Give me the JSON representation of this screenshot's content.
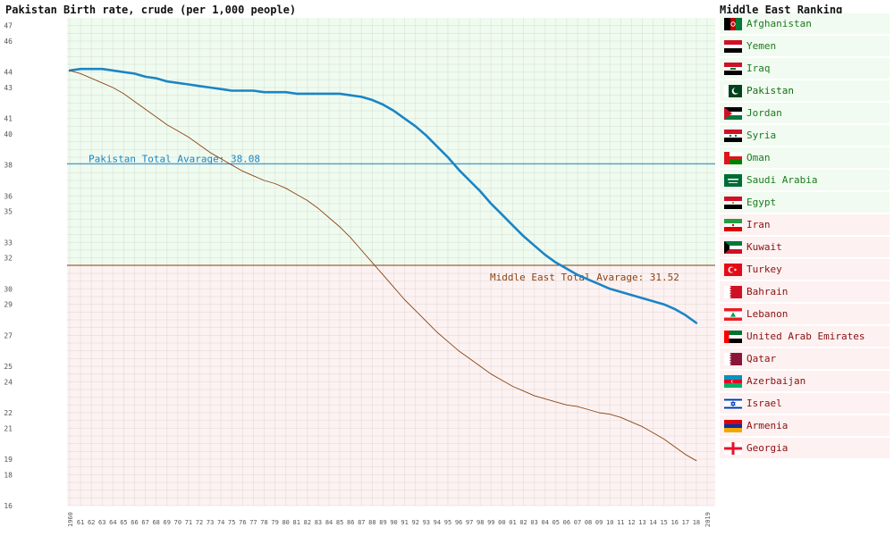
{
  "chart_data": {
    "type": "line",
    "title": "Pakistan Birth rate, crude (per 1,000 people)",
    "x": [
      1960,
      1961,
      1962,
      1963,
      1964,
      1965,
      1966,
      1967,
      1968,
      1969,
      1970,
      1971,
      1972,
      1973,
      1974,
      1975,
      1976,
      1977,
      1978,
      1979,
      1980,
      1981,
      1982,
      1983,
      1984,
      1985,
      1986,
      1987,
      1988,
      1989,
      1990,
      1991,
      1992,
      1993,
      1994,
      1995,
      1996,
      1997,
      1998,
      1999,
      2000,
      2001,
      2002,
      2003,
      2004,
      2005,
      2006,
      2007,
      2008,
      2009,
      2010,
      2011,
      2012,
      2013,
      2014,
      2015,
      2016,
      2017,
      2018,
      2019
    ],
    "x_tick_labels": [
      "1960",
      "61",
      "62",
      "63",
      "64",
      "65",
      "66",
      "67",
      "68",
      "69",
      "70",
      "71",
      "72",
      "73",
      "74",
      "75",
      "76",
      "77",
      "78",
      "79",
      "80",
      "81",
      "82",
      "83",
      "84",
      "85",
      "86",
      "87",
      "88",
      "89",
      "90",
      "91",
      "92",
      "93",
      "94",
      "95",
      "96",
      "97",
      "98",
      "99",
      "00",
      "01",
      "02",
      "03",
      "04",
      "05",
      "06",
      "07",
      "08",
      "09",
      "10",
      "11",
      "12",
      "13",
      "14",
      "15",
      "16",
      "17",
      "18",
      "2019"
    ],
    "y_ticks": [
      16,
      18,
      19,
      21,
      22,
      24,
      25,
      27,
      29,
      30,
      32,
      33,
      35,
      36,
      38,
      40,
      41,
      43,
      44,
      46,
      47
    ],
    "ylim": [
      16,
      47.5
    ],
    "series": [
      {
        "name": "Pakistan",
        "color": "#1a85c4",
        "values": [
          44.1,
          44.2,
          44.2,
          44.2,
          44.1,
          44.0,
          43.9,
          43.7,
          43.6,
          43.4,
          43.3,
          43.2,
          43.1,
          43.0,
          42.9,
          42.8,
          42.8,
          42.8,
          42.7,
          42.7,
          42.7,
          42.6,
          42.6,
          42.6,
          42.6,
          42.6,
          42.5,
          42.4,
          42.2,
          41.9,
          41.5,
          41.0,
          40.5,
          39.9,
          39.2,
          38.5,
          37.7,
          37.0,
          36.3,
          35.5,
          34.8,
          34.1,
          33.4,
          32.8,
          32.2,
          31.7,
          31.3,
          30.9,
          30.6,
          30.3,
          30.0,
          29.8,
          29.6,
          29.4,
          29.2,
          29.0,
          28.7,
          28.3,
          27.8,
          null
        ]
      },
      {
        "name": "Middle East",
        "color": "#8b4513",
        "values": [
          44.1,
          43.9,
          43.6,
          43.3,
          43.0,
          42.6,
          42.1,
          41.6,
          41.1,
          40.6,
          40.2,
          39.8,
          39.3,
          38.8,
          38.4,
          38.0,
          37.6,
          37.3,
          37.0,
          36.8,
          36.5,
          36.1,
          35.7,
          35.2,
          34.6,
          34.0,
          33.3,
          32.5,
          31.7,
          30.9,
          30.1,
          29.3,
          28.6,
          27.9,
          27.2,
          26.6,
          26.0,
          25.5,
          25.0,
          24.5,
          24.1,
          23.7,
          23.4,
          23.1,
          22.9,
          22.7,
          22.5,
          22.4,
          22.2,
          22.0,
          21.9,
          21.7,
          21.4,
          21.1,
          20.7,
          20.3,
          19.8,
          19.3,
          18.9,
          null
        ]
      }
    ],
    "reference_lines": [
      {
        "label": "Pakistan Total Avarage: 38.08",
        "value": 38.08,
        "color": "#1a85c4"
      },
      {
        "label": "Middle East Total Avarage: 31.52",
        "value": 31.52,
        "color": "#8b4513"
      }
    ],
    "grid": true
  },
  "ranking": {
    "title": "Middle East Ranking",
    "current": "Pakistan",
    "items": [
      {
        "name": "Afghanistan",
        "group": "above",
        "flag": "afghanistan"
      },
      {
        "name": "Yemen",
        "group": "above",
        "flag": "yemen"
      },
      {
        "name": "Iraq",
        "group": "above",
        "flag": "iraq"
      },
      {
        "name": "Pakistan",
        "group": "above",
        "flag": "pakistan"
      },
      {
        "name": "Jordan",
        "group": "above",
        "flag": "jordan"
      },
      {
        "name": "Syria",
        "group": "above",
        "flag": "syria"
      },
      {
        "name": "Oman",
        "group": "above",
        "flag": "oman"
      },
      {
        "name": "Saudi Arabia",
        "group": "above",
        "flag": "saudi-arabia"
      },
      {
        "name": "Egypt",
        "group": "above",
        "flag": "egypt"
      },
      {
        "name": "Iran",
        "group": "below",
        "flag": "iran"
      },
      {
        "name": "Kuwait",
        "group": "below",
        "flag": "kuwait"
      },
      {
        "name": "Turkey",
        "group": "below",
        "flag": "turkey"
      },
      {
        "name": "Bahrain",
        "group": "below",
        "flag": "bahrain"
      },
      {
        "name": "Lebanon",
        "group": "below",
        "flag": "lebanon"
      },
      {
        "name": "United Arab Emirates",
        "group": "below",
        "flag": "uae"
      },
      {
        "name": "Qatar",
        "group": "below",
        "flag": "qatar"
      },
      {
        "name": "Azerbaijan",
        "group": "below",
        "flag": "azerbaijan"
      },
      {
        "name": "Israel",
        "group": "below",
        "flag": "israel"
      },
      {
        "name": "Armenia",
        "group": "below",
        "flag": "armenia"
      },
      {
        "name": "Georgia",
        "group": "below",
        "flag": "georgia"
      }
    ]
  }
}
